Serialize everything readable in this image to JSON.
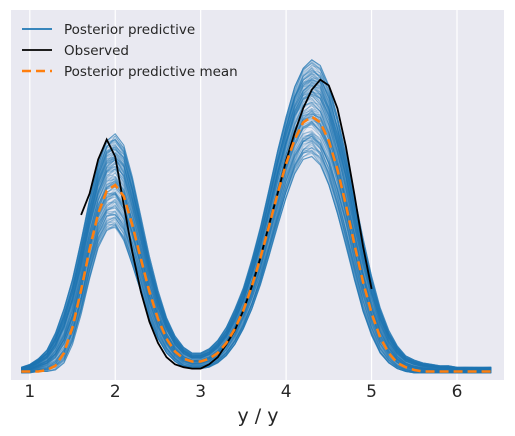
{
  "chart_data": {
    "type": "line",
    "title": "",
    "xlabel": "y / y",
    "ylabel": "",
    "xlim": [
      0.78,
      6.55
    ],
    "ylim": [
      -0.005,
      0.255
    ],
    "xticks": [
      1,
      2,
      3,
      4,
      5,
      6
    ],
    "grid": true,
    "legend_position": "top-left",
    "colors": {
      "background": "#e9e9f1",
      "posterior_predictive": "#1f77b4",
      "observed": "#000000",
      "posterior_predictive_mean": "#ff7f0e"
    },
    "legend": [
      {
        "label": "Posterior predictive",
        "style": "solid",
        "color": "#1f77b4"
      },
      {
        "label": "Observed",
        "style": "solid",
        "color": "#000000"
      },
      {
        "label": "Posterior predictive mean",
        "style": "dashed",
        "color": "#ff7f0e"
      }
    ],
    "series": [
      {
        "name": "Observed",
        "x": [
          1.6,
          1.7,
          1.8,
          1.9,
          2.0,
          2.1,
          2.2,
          2.3,
          2.4,
          2.5,
          2.6,
          2.7,
          2.8,
          2.9,
          3.0,
          3.1,
          3.2,
          3.3,
          3.4,
          3.5,
          3.6,
          3.7,
          3.8,
          3.9,
          4.0,
          4.1,
          4.2,
          4.3,
          4.4,
          4.5,
          4.6,
          4.7,
          4.8,
          4.9,
          5.0
        ],
        "y": [
          0.111,
          0.126,
          0.15,
          0.164,
          0.152,
          0.118,
          0.085,
          0.057,
          0.036,
          0.021,
          0.011,
          0.006,
          0.004,
          0.003,
          0.003,
          0.006,
          0.011,
          0.02,
          0.03,
          0.044,
          0.061,
          0.081,
          0.104,
          0.126,
          0.149,
          0.169,
          0.186,
          0.199,
          0.206,
          0.202,
          0.186,
          0.159,
          0.125,
          0.089,
          0.059
        ]
      },
      {
        "name": "Posterior predictive mean",
        "x": [
          0.9,
          1.0,
          1.1,
          1.2,
          1.3,
          1.4,
          1.5,
          1.6,
          1.7,
          1.8,
          1.9,
          2.0,
          2.1,
          2.2,
          2.3,
          2.4,
          2.5,
          2.6,
          2.7,
          2.8,
          2.9,
          3.0,
          3.1,
          3.2,
          3.3,
          3.4,
          3.5,
          3.6,
          3.7,
          3.8,
          3.9,
          4.0,
          4.1,
          4.2,
          4.3,
          4.4,
          4.5,
          4.6,
          4.7,
          4.8,
          4.9,
          5.0,
          5.1,
          5.2,
          5.3,
          5.4,
          5.5,
          5.6,
          5.7,
          5.8,
          5.9,
          6.0,
          6.1,
          6.2,
          6.3,
          6.4
        ],
        "y": [
          0.001,
          0.001,
          0.001,
          0.002,
          0.005,
          0.014,
          0.032,
          0.058,
          0.087,
          0.112,
          0.128,
          0.132,
          0.124,
          0.104,
          0.08,
          0.057,
          0.038,
          0.024,
          0.015,
          0.01,
          0.008,
          0.008,
          0.01,
          0.014,
          0.021,
          0.031,
          0.044,
          0.061,
          0.081,
          0.103,
          0.126,
          0.147,
          0.164,
          0.176,
          0.18,
          0.176,
          0.163,
          0.143,
          0.118,
          0.09,
          0.064,
          0.042,
          0.025,
          0.014,
          0.007,
          0.004,
          0.002,
          0.001,
          0.001,
          0.001,
          0.001,
          0.001,
          0.001,
          0.001,
          0.001,
          0.001
        ]
      }
    ],
    "posterior_predictive_band": {
      "name": "Posterior predictive",
      "x": [
        0.9,
        1.0,
        1.1,
        1.2,
        1.3,
        1.4,
        1.5,
        1.6,
        1.7,
        1.8,
        1.9,
        2.0,
        2.1,
        2.2,
        2.3,
        2.4,
        2.5,
        2.6,
        2.7,
        2.8,
        2.9,
        3.0,
        3.1,
        3.2,
        3.3,
        3.4,
        3.5,
        3.6,
        3.7,
        3.8,
        3.9,
        4.0,
        4.1,
        4.2,
        4.3,
        4.4,
        4.5,
        4.6,
        4.7,
        4.8,
        4.9,
        5.0,
        5.1,
        5.2,
        5.3,
        5.4,
        5.5,
        5.6,
        5.7,
        5.8,
        5.9,
        6.0,
        6.1,
        6.2,
        6.3,
        6.4
      ],
      "lower": [
        0.0,
        0.0,
        0.001,
        0.001,
        0.002,
        0.007,
        0.02,
        0.041,
        0.066,
        0.088,
        0.1,
        0.102,
        0.093,
        0.076,
        0.057,
        0.038,
        0.024,
        0.014,
        0.008,
        0.004,
        0.003,
        0.003,
        0.004,
        0.007,
        0.012,
        0.02,
        0.031,
        0.045,
        0.062,
        0.082,
        0.103,
        0.123,
        0.14,
        0.15,
        0.152,
        0.146,
        0.132,
        0.112,
        0.089,
        0.065,
        0.043,
        0.026,
        0.014,
        0.007,
        0.003,
        0.001,
        0.0,
        0.0,
        0.0,
        0.0,
        0.0,
        0.0,
        0.0,
        0.0,
        0.0,
        0.0
      ],
      "upper": [
        0.004,
        0.006,
        0.01,
        0.016,
        0.028,
        0.045,
        0.066,
        0.093,
        0.122,
        0.147,
        0.163,
        0.168,
        0.16,
        0.138,
        0.11,
        0.082,
        0.058,
        0.039,
        0.026,
        0.018,
        0.014,
        0.014,
        0.017,
        0.023,
        0.032,
        0.045,
        0.06,
        0.08,
        0.103,
        0.129,
        0.156,
        0.18,
        0.201,
        0.214,
        0.22,
        0.216,
        0.202,
        0.18,
        0.154,
        0.124,
        0.095,
        0.068,
        0.046,
        0.03,
        0.019,
        0.012,
        0.009,
        0.007,
        0.006,
        0.005,
        0.005,
        0.004,
        0.004,
        0.004,
        0.004,
        0.004
      ]
    }
  }
}
